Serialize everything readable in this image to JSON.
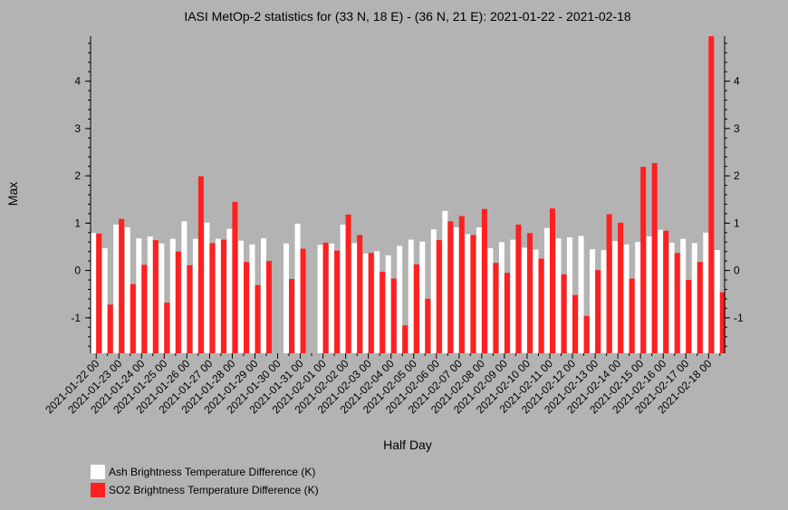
{
  "chart_data": {
    "type": "bar",
    "title": "IASI MetOp-2 statistics for (33 N, 18 E) - (36 N, 21 E): 2021-01-22 - 2021-02-18",
    "xlabel": "Half Day",
    "ylabel": "Max",
    "ylim": [
      -1.75,
      4.95
    ],
    "yticks": [
      -1,
      0,
      1,
      2,
      3,
      4
    ],
    "grid": false,
    "legend_position": "bottom-left",
    "x_tick_labels": [
      "2021-01-22 00",
      "2021-01-23 00",
      "2021-01-24 00",
      "2021-01-25 00",
      "2021-01-26 00",
      "2021-01-27 00",
      "2021-01-28 00",
      "2021-01-29 00",
      "2021-01-30 00",
      "2021-01-31 00",
      "2021-02-01 00",
      "2021-02-02 00",
      "2021-02-03 00",
      "2021-02-04 00",
      "2021-02-05 00",
      "2021-02-06 00",
      "2021-02-07 00",
      "2021-02-08 00",
      "2021-02-09 00",
      "2021-02-10 00",
      "2021-02-11 00",
      "2021-02-12 00",
      "2021-02-13 00",
      "2021-02-14 00",
      "2021-02-15 00",
      "2021-02-16 00",
      "2021-02-17 00",
      "2021-02-18 00"
    ],
    "series": [
      {
        "name": "Ash Brightness Temperature Difference (K)",
        "color": "#ffffff",
        "values": [
          0.79,
          0.47,
          0.97,
          0.91,
          0.68,
          0.72,
          0.57,
          0.67,
          1.04,
          0.67,
          1.01,
          0.67,
          0.88,
          0.63,
          0.55,
          0.68,
          null,
          0.57,
          0.99,
          null,
          0.54,
          0.57,
          0.97,
          0.58,
          0.36,
          0.41,
          0.32,
          0.52,
          0.65,
          0.61,
          0.87,
          1.26,
          0.91,
          0.77,
          0.91,
          0.47,
          0.6,
          0.65,
          0.48,
          0.44,
          0.9,
          0.68,
          0.7,
          0.73,
          0.45,
          0.43,
          0.62,
          0.55,
          0.6,
          0.72,
          0.86,
          0.59,
          0.67,
          0.58,
          0.8,
          0.43
        ]
      },
      {
        "name": "SO2 Brightness Temperature Difference (K)",
        "color": "#ff2020",
        "values": [
          0.78,
          -0.72,
          1.09,
          -0.29,
          0.12,
          0.64,
          -0.68,
          0.4,
          0.11,
          1.99,
          0.58,
          0.65,
          1.45,
          0.18,
          -0.31,
          0.2,
          null,
          -0.18,
          0.46,
          null,
          0.59,
          0.42,
          1.18,
          0.75,
          0.37,
          -0.03,
          -0.17,
          -1.16,
          0.13,
          -0.6,
          0.64,
          1.04,
          1.15,
          0.75,
          1.3,
          0.16,
          -0.05,
          0.97,
          0.79,
          0.25,
          1.31,
          -0.08,
          -0.52,
          -0.96,
          0.01,
          1.19,
          1.01,
          -0.17,
          2.19,
          2.27,
          0.84,
          0.37,
          -0.2,
          0.18,
          4.95,
          -0.46
        ]
      }
    ]
  }
}
